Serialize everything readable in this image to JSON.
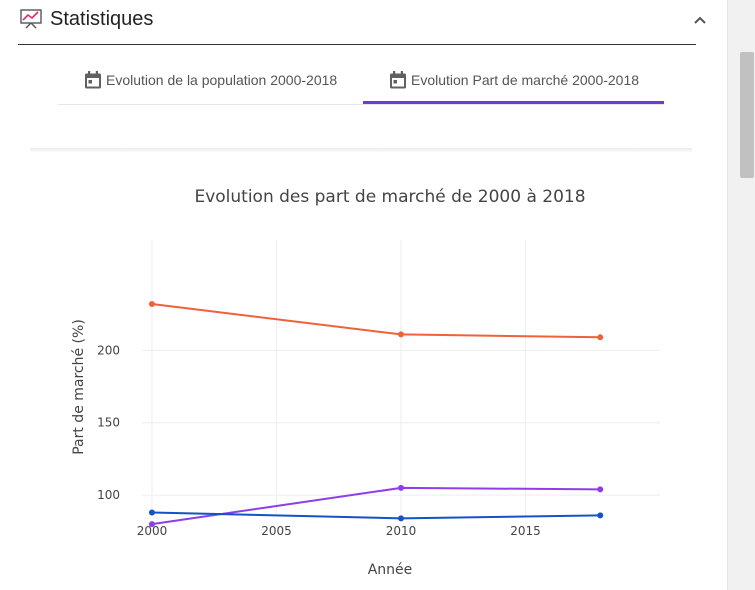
{
  "header": {
    "title": "Statistiques",
    "icon": "presentation-chart-icon",
    "collapse_icon": "chevron-up-icon"
  },
  "tabs": [
    {
      "label": "Evolution de la population 2000-2018",
      "icon": "calendar-icon",
      "active": false
    },
    {
      "label": "Evolution Part de marché 2000-2018",
      "icon": "calendar-icon",
      "active": true
    }
  ],
  "colors": {
    "accent": "#6f3cc9",
    "series_orange": "#f0603a",
    "series_purple": "#8e3ee8",
    "series_blue": "#1452c9"
  },
  "chart_data": {
    "type": "line",
    "title": "Evolution des part de marché de 2000 à 2018",
    "xlabel": "Année",
    "ylabel": "Part de marché (%)",
    "xlim": [
      1999.6,
      2020.4
    ],
    "ylim": [
      85.6,
      276.2
    ],
    "xticks": [
      2000,
      2005,
      2010,
      2015
    ],
    "yticks": [
      100,
      150,
      200
    ],
    "grid": true,
    "series": [
      {
        "color": "#f0603a",
        "x": [
          2000,
          2010,
          2018
        ],
        "y": [
          232,
          211,
          209
        ]
      },
      {
        "color": "#8e3ee8",
        "x": [
          2000,
          2010,
          2018
        ],
        "y": [
          80,
          105,
          104
        ]
      },
      {
        "color": "#1452c9",
        "x": [
          2000,
          2010,
          2018
        ],
        "y": [
          88,
          84,
          86
        ]
      }
    ]
  }
}
